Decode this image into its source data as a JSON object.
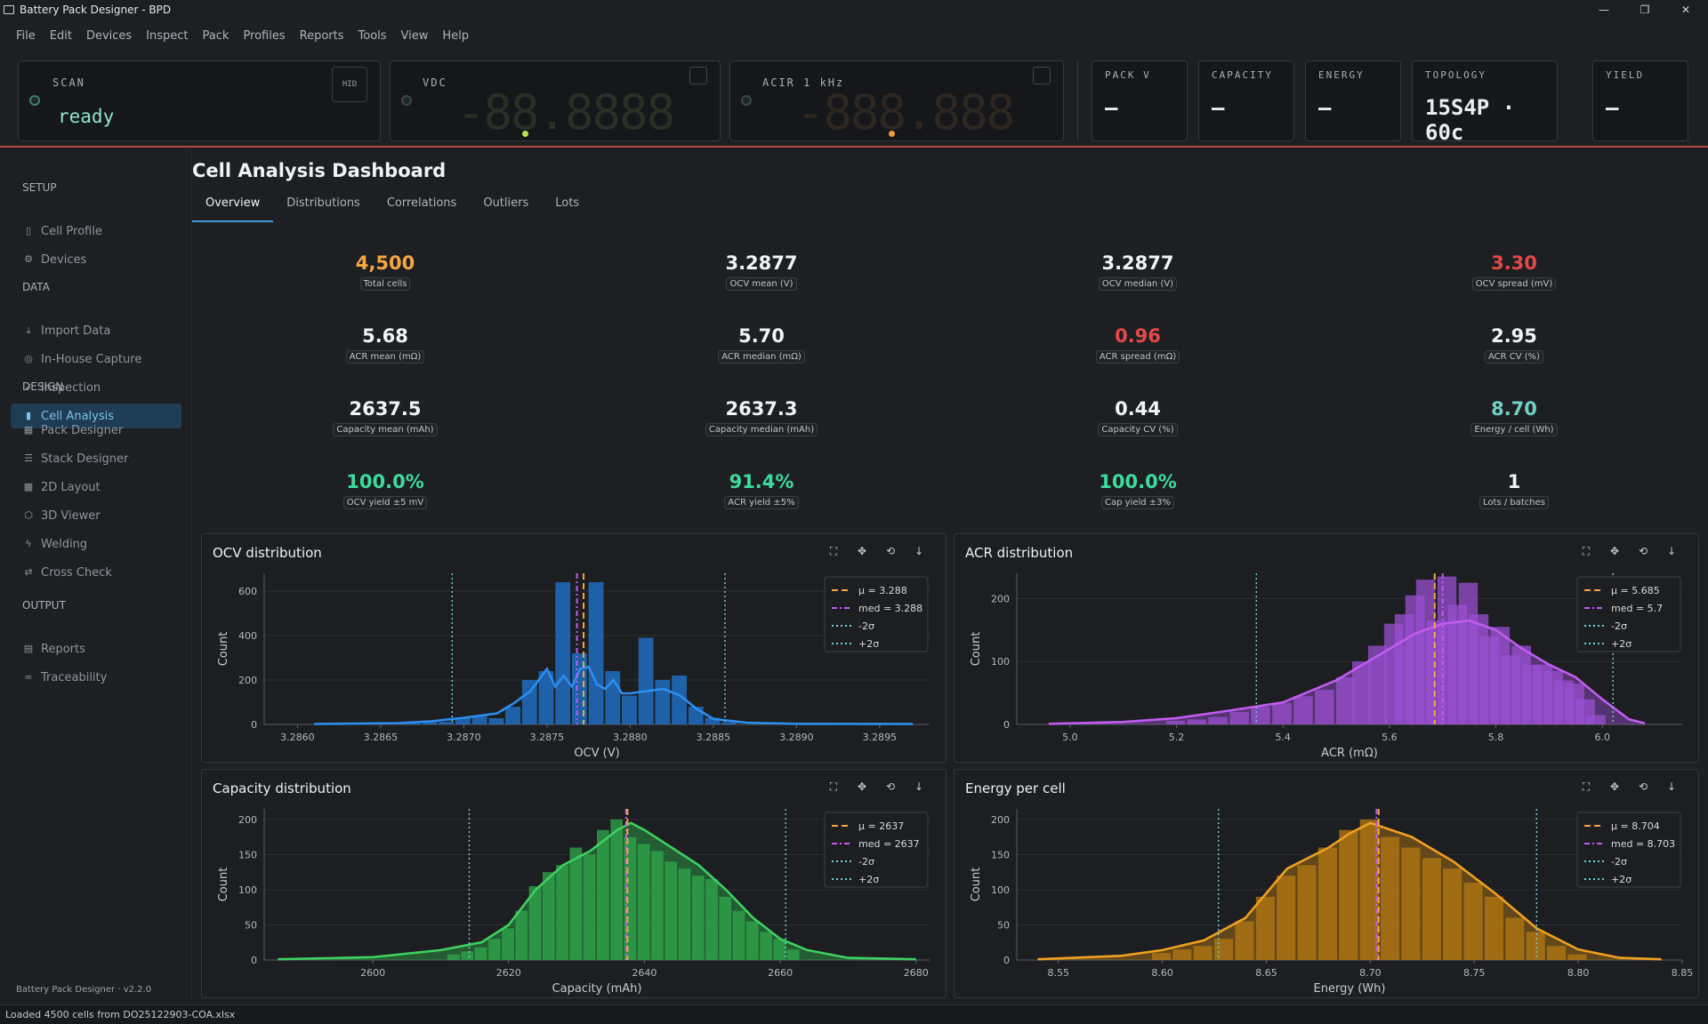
{
  "window": {
    "title": "Battery Pack Designer - BPD",
    "controls": [
      "—",
      "❐",
      "✕"
    ]
  },
  "menu": [
    "File",
    "Edit",
    "Devices",
    "Inspect",
    "Pack",
    "Profiles",
    "Reports",
    "Tools",
    "View",
    "Help"
  ],
  "instruments": {
    "scan": {
      "label": "SCAN",
      "status": "ready",
      "hid": "HID"
    },
    "vdc": {
      "label": "VDC",
      "display": "-88.8888"
    },
    "acir": {
      "label": "ACIR  1 kHz",
      "display": "-888.888"
    },
    "stats": [
      {
        "label": "PACK V",
        "value": "—"
      },
      {
        "label": "CAPACITY",
        "value": "—"
      },
      {
        "label": "ENERGY",
        "value": "—"
      },
      {
        "label": "TOPOLOGY",
        "value": "15S4P · 60c"
      },
      {
        "label": "YIELD",
        "value": "—"
      }
    ]
  },
  "sidebar": {
    "sections": [
      {
        "title": "SETUP",
        "items": [
          {
            "label": "Cell Profile",
            "icon": "cell-icon"
          },
          {
            "label": "Devices",
            "icon": "gear-icon"
          }
        ]
      },
      {
        "title": "DATA",
        "items": [
          {
            "label": "Import Data",
            "icon": "download-icon"
          },
          {
            "label": "In-House Capture",
            "icon": "target-icon"
          },
          {
            "label": "Inspection",
            "icon": "check-icon"
          },
          {
            "label": "Cell Analysis",
            "icon": "bar-chart-icon"
          }
        ]
      },
      {
        "title": "DESIGN",
        "items": [
          {
            "label": "Pack Designer",
            "icon": "grid-icon"
          },
          {
            "label": "Stack Designer",
            "icon": "stack-icon"
          },
          {
            "label": "2D Layout",
            "icon": "dots-grid-icon"
          },
          {
            "label": "3D Viewer",
            "icon": "cube-icon"
          },
          {
            "label": "Welding",
            "icon": "bolt-icon"
          },
          {
            "label": "Cross Check",
            "icon": "swap-icon"
          }
        ]
      },
      {
        "title": "OUTPUT",
        "items": [
          {
            "label": "Reports",
            "icon": "document-icon"
          },
          {
            "label": "Traceability",
            "icon": "link-icon"
          }
        ]
      }
    ],
    "active": "Cell Analysis",
    "version": "Battery Pack Designer · v2.2.0"
  },
  "page": {
    "title": "Cell Analysis Dashboard",
    "tabs": [
      "Overview",
      "Distributions",
      "Correlations",
      "Outliers",
      "Lots"
    ],
    "active_tab": "Overview"
  },
  "colors": {
    "orange": "#f5a742",
    "red": "#e54848",
    "green": "#3ddb9c",
    "white": "#f1f3f5",
    "teal": "#6fd1c2"
  },
  "kpis": [
    {
      "value": "4,500",
      "label": "Total cells",
      "color": "orange"
    },
    {
      "value": "3.2877",
      "label": "OCV mean (V)",
      "color": "white"
    },
    {
      "value": "3.2877",
      "label": "OCV median (V)",
      "color": "white"
    },
    {
      "value": "3.30",
      "label": "OCV spread (mV)",
      "color": "red"
    },
    {
      "value": "5.68",
      "label": "ACR mean (mΩ)",
      "color": "white"
    },
    {
      "value": "5.70",
      "label": "ACR median (mΩ)",
      "color": "white"
    },
    {
      "value": "0.96",
      "label": "ACR spread (mΩ)",
      "color": "red"
    },
    {
      "value": "2.95",
      "label": "ACR CV (%)",
      "color": "white"
    },
    {
      "value": "2637.5",
      "label": "Capacity mean (mAh)",
      "color": "white"
    },
    {
      "value": "2637.3",
      "label": "Capacity median (mAh)",
      "color": "white"
    },
    {
      "value": "0.44",
      "label": "Capacity CV (%)",
      "color": "white"
    },
    {
      "value": "8.70",
      "label": "Energy / cell (Wh)",
      "color": "teal"
    },
    {
      "value": "100.0%",
      "label": "OCV yield ±5 mV",
      "color": "green"
    },
    {
      "value": "91.4%",
      "label": "ACR yield ±5%",
      "color": "green"
    },
    {
      "value": "100.0%",
      "label": "Cap yield ±3%",
      "color": "green"
    },
    {
      "value": "1",
      "label": "Lots / batches",
      "color": "white"
    }
  ],
  "chart_tools": [
    "⛶",
    "✥",
    "⟲",
    "↓"
  ],
  "chart_data": [
    {
      "type": "bar",
      "title": "OCV distribution",
      "xlabel": "OCV (V)",
      "ylabel": "Count",
      "color": "#1f78d6",
      "xlim": [
        3.2858,
        3.2898
      ],
      "ylim": [
        0,
        680
      ],
      "xticks": [
        3.286,
        3.2865,
        3.287,
        3.2875,
        3.288,
        3.2885,
        3.289,
        3.2895
      ],
      "xtick_labels": [
        "3.2860",
        "3.2865",
        "3.2870",
        "3.2875",
        "3.2880",
        "3.2885",
        "3.2890",
        "3.2895"
      ],
      "yticks": [
        0,
        200,
        400,
        600
      ],
      "bins": [
        [
          3.2867,
          6
        ],
        [
          3.2868,
          18
        ],
        [
          3.2869,
          12
        ],
        [
          3.287,
          30
        ],
        [
          3.2871,
          40
        ],
        [
          3.2872,
          28
        ],
        [
          3.2873,
          80
        ],
        [
          3.2874,
          200
        ],
        [
          3.2875,
          240
        ],
        [
          3.2876,
          640
        ],
        [
          3.2877,
          320
        ],
        [
          3.2878,
          640
        ],
        [
          3.2879,
          240
        ],
        [
          3.288,
          130
        ],
        [
          3.2881,
          390
        ],
        [
          3.2882,
          200
        ],
        [
          3.2883,
          220
        ],
        [
          3.2884,
          80
        ],
        [
          3.2885,
          30
        ],
        [
          3.2886,
          10
        ]
      ],
      "kde": [
        [
          3.2861,
          2
        ],
        [
          3.2866,
          6
        ],
        [
          3.2868,
          14
        ],
        [
          3.287,
          30
        ],
        [
          3.2872,
          50
        ],
        [
          3.2873,
          95
        ],
        [
          3.2874,
          150
        ],
        [
          3.2875,
          250
        ],
        [
          3.28755,
          170
        ],
        [
          3.2876,
          220
        ],
        [
          3.28765,
          170
        ],
        [
          3.2877,
          250
        ],
        [
          3.28775,
          260
        ],
        [
          3.2878,
          180
        ],
        [
          3.28785,
          160
        ],
        [
          3.2879,
          200
        ],
        [
          3.28795,
          140
        ],
        [
          3.288,
          140
        ],
        [
          3.2881,
          150
        ],
        [
          3.2882,
          160
        ],
        [
          3.2883,
          130
        ],
        [
          3.2884,
          70
        ],
        [
          3.2885,
          25
        ],
        [
          3.2887,
          8
        ],
        [
          3.289,
          3
        ],
        [
          3.2897,
          2
        ]
      ],
      "lines": {
        "mean": 3.28772,
        "median": 3.28768,
        "minus2s": 3.28693,
        "plus2s": 3.28857
      },
      "legend": [
        "μ = 3.288",
        "med = 3.288",
        "-2σ",
        "+2σ"
      ]
    },
    {
      "type": "bar",
      "title": "ACR distribution",
      "xlabel": "ACR (mΩ)",
      "ylabel": "Count",
      "color": "#9a4fd1",
      "xlim": [
        4.9,
        6.15
      ],
      "ylim": [
        0,
        240
      ],
      "xticks": [
        5.0,
        5.2,
        5.4,
        5.6,
        5.8,
        6.0
      ],
      "xtick_labels": [
        "5.0",
        "5.2",
        "5.4",
        "5.6",
        "5.8",
        "6.0"
      ],
      "yticks": [
        0,
        100,
        200
      ],
      "bins": [
        [
          5.2,
          6
        ],
        [
          5.24,
          8
        ],
        [
          5.28,
          12
        ],
        [
          5.32,
          20
        ],
        [
          5.36,
          28
        ],
        [
          5.4,
          34
        ],
        [
          5.44,
          45
        ],
        [
          5.48,
          55
        ],
        [
          5.52,
          75
        ],
        [
          5.55,
          100
        ],
        [
          5.58,
          125
        ],
        [
          5.61,
          160
        ],
        [
          5.63,
          175
        ],
        [
          5.65,
          205
        ],
        [
          5.67,
          230
        ],
        [
          5.69,
          165
        ],
        [
          5.71,
          235
        ],
        [
          5.73,
          190
        ],
        [
          5.75,
          225
        ],
        [
          5.77,
          175
        ],
        [
          5.79,
          140
        ],
        [
          5.81,
          155
        ],
        [
          5.83,
          110
        ],
        [
          5.85,
          125
        ],
        [
          5.87,
          95
        ],
        [
          5.89,
          95
        ],
        [
          5.91,
          85
        ],
        [
          5.93,
          70
        ],
        [
          5.95,
          65
        ],
        [
          5.97,
          40
        ],
        [
          5.99,
          15
        ]
      ],
      "kde": [
        [
          4.96,
          1
        ],
        [
          5.1,
          4
        ],
        [
          5.2,
          10
        ],
        [
          5.3,
          22
        ],
        [
          5.4,
          35
        ],
        [
          5.5,
          70
        ],
        [
          5.6,
          120
        ],
        [
          5.65,
          145
        ],
        [
          5.7,
          160
        ],
        [
          5.75,
          165
        ],
        [
          5.8,
          150
        ],
        [
          5.85,
          120
        ],
        [
          5.9,
          95
        ],
        [
          5.95,
          75
        ],
        [
          6.0,
          40
        ],
        [
          6.05,
          8
        ],
        [
          6.08,
          2
        ]
      ],
      "lines": {
        "mean": 5.685,
        "median": 5.7,
        "minus2s": 5.35,
        "plus2s": 6.02
      },
      "legend": [
        "μ = 5.685",
        "med = 5.7",
        "-2σ",
        "+2σ"
      ]
    },
    {
      "type": "bar",
      "title": "Capacity distribution",
      "xlabel": "Capacity (mAh)",
      "ylabel": "Count",
      "color": "#2ea84a",
      "xlim": [
        2584,
        2682
      ],
      "ylim": [
        0,
        215
      ],
      "xticks": [
        2600,
        2620,
        2640,
        2660,
        2680
      ],
      "xtick_labels": [
        "2600",
        "2620",
        "2640",
        "2660",
        "2680"
      ],
      "yticks": [
        0,
        50,
        100,
        150,
        200
      ],
      "bins": [
        [
          2612,
          8
        ],
        [
          2614,
          12
        ],
        [
          2616,
          18
        ],
        [
          2618,
          30
        ],
        [
          2620,
          45
        ],
        [
          2622,
          70
        ],
        [
          2624,
          105
        ],
        [
          2626,
          125
        ],
        [
          2628,
          135
        ],
        [
          2630,
          160
        ],
        [
          2632,
          150
        ],
        [
          2634,
          185
        ],
        [
          2636,
          200
        ],
        [
          2638,
          175
        ],
        [
          2640,
          165
        ],
        [
          2642,
          155
        ],
        [
          2644,
          140
        ],
        [
          2646,
          130
        ],
        [
          2648,
          120
        ],
        [
          2650,
          115
        ],
        [
          2652,
          90
        ],
        [
          2654,
          70
        ],
        [
          2656,
          55
        ],
        [
          2658,
          40
        ],
        [
          2660,
          30
        ],
        [
          2662,
          15
        ]
      ],
      "kde": [
        [
          2586,
          1
        ],
        [
          2600,
          4
        ],
        [
          2610,
          14
        ],
        [
          2616,
          25
        ],
        [
          2620,
          50
        ],
        [
          2624,
          100
        ],
        [
          2628,
          135
        ],
        [
          2632,
          155
        ],
        [
          2636,
          185
        ],
        [
          2638,
          195
        ],
        [
          2640,
          185
        ],
        [
          2644,
          160
        ],
        [
          2648,
          135
        ],
        [
          2652,
          100
        ],
        [
          2656,
          60
        ],
        [
          2660,
          30
        ],
        [
          2664,
          14
        ],
        [
          2670,
          3
        ],
        [
          2680,
          1
        ]
      ],
      "lines": {
        "mean": 2637.5,
        "median": 2637.3,
        "minus2s": 2614.2,
        "plus2s": 2660.8
      },
      "legend": [
        "μ = 2637",
        "med = 2637",
        "-2σ",
        "+2σ"
      ]
    },
    {
      "type": "bar",
      "title": "Energy per cell",
      "xlabel": "Energy (Wh)",
      "ylabel": "Count",
      "color": "#b57a12",
      "xlim": [
        8.53,
        8.85
      ],
      "ylim": [
        0,
        215
      ],
      "xticks": [
        8.55,
        8.6,
        8.65,
        8.7,
        8.75,
        8.8,
        8.85
      ],
      "xtick_labels": [
        "8.55",
        "8.60",
        "8.65",
        "8.70",
        "8.75",
        "8.80",
        "8.85"
      ],
      "yticks": [
        0,
        50,
        100,
        150,
        200
      ],
      "bins": [
        [
          8.6,
          10
        ],
        [
          8.61,
          15
        ],
        [
          8.62,
          20
        ],
        [
          8.63,
          30
        ],
        [
          8.64,
          55
        ],
        [
          8.65,
          90
        ],
        [
          8.66,
          120
        ],
        [
          8.67,
          135
        ],
        [
          8.68,
          160
        ],
        [
          8.69,
          185
        ],
        [
          8.7,
          200
        ],
        [
          8.71,
          175
        ],
        [
          8.72,
          160
        ],
        [
          8.73,
          145
        ],
        [
          8.74,
          130
        ],
        [
          8.75,
          110
        ],
        [
          8.76,
          90
        ],
        [
          8.77,
          60
        ],
        [
          8.78,
          40
        ],
        [
          8.79,
          20
        ],
        [
          8.8,
          8
        ]
      ],
      "kde": [
        [
          8.54,
          1
        ],
        [
          8.58,
          6
        ],
        [
          8.6,
          14
        ],
        [
          8.62,
          28
        ],
        [
          8.64,
          60
        ],
        [
          8.66,
          130
        ],
        [
          8.68,
          160
        ],
        [
          8.69,
          180
        ],
        [
          8.7,
          195
        ],
        [
          8.72,
          175
        ],
        [
          8.74,
          140
        ],
        [
          8.76,
          95
        ],
        [
          8.78,
          45
        ],
        [
          8.8,
          15
        ],
        [
          8.82,
          3
        ],
        [
          8.84,
          1
        ]
      ],
      "lines": {
        "mean": 8.704,
        "median": 8.703,
        "minus2s": 8.627,
        "plus2s": 8.78
      },
      "legend": [
        "μ = 8.704",
        "med = 8.703",
        "-2σ",
        "+2σ"
      ]
    }
  ],
  "status": "Loaded 4500 cells from DO25122903-COA.xlsx"
}
